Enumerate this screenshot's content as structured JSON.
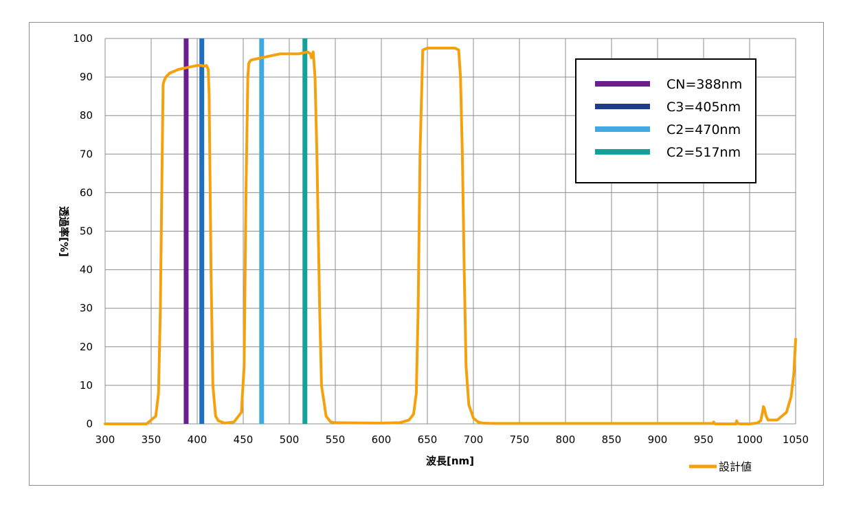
{
  "chart_data": {
    "type": "line",
    "title": "",
    "xlabel": "波長[nm]",
    "ylabel": "透過率[%]",
    "xlim": [
      300,
      1050
    ],
    "ylim": [
      0,
      100
    ],
    "x_ticks": [
      "300",
      "350",
      "400",
      "450",
      "500",
      "550",
      "600",
      "650",
      "700",
      "750",
      "800",
      "850",
      "900",
      "950",
      "1000",
      "1050"
    ],
    "y_ticks": [
      "0",
      "10",
      "20",
      "30",
      "40",
      "50",
      "60",
      "70",
      "80",
      "90",
      "100"
    ],
    "grid": true,
    "legend_top": {
      "placement": "top-right",
      "entries": [
        {
          "label": "CN=388nm",
          "color": "#6a1f8f"
        },
        {
          "label": "C3=405nm",
          "color": "#1f3c8c"
        },
        {
          "label": "C2=470nm",
          "color": "#41a8e0"
        },
        {
          "label": "C2=517nm",
          "color": "#16a09a"
        }
      ]
    },
    "legend_bottom": {
      "placement": "bottom-right",
      "entries": [
        {
          "label": "設計値",
          "color": "#f5a10d"
        }
      ]
    },
    "vlines": [
      {
        "name": "CN=388nm",
        "x": 388,
        "color": "#6a1f8f"
      },
      {
        "name": "C3=405nm",
        "x": 405,
        "color": "#1f6fbf"
      },
      {
        "name": "C2=470nm",
        "x": 470,
        "color": "#41a8e0"
      },
      {
        "name": "C2=517nm",
        "x": 517,
        "color": "#16a09a"
      }
    ],
    "series": [
      {
        "name": "設計値",
        "color": "#f5a10d",
        "x": [
          300,
          345,
          350,
          355,
          358,
          360,
          362,
          363,
          364,
          366,
          370,
          380,
          390,
          400,
          405,
          408,
          410,
          412,
          413,
          415,
          417,
          420,
          423,
          430,
          440,
          448,
          451,
          453,
          455,
          456,
          457,
          458,
          460,
          470,
          480,
          490,
          500,
          510,
          520,
          523,
          524,
          526,
          528,
          530,
          533,
          535,
          540,
          545,
          550,
          600,
          620,
          630,
          635,
          638,
          640,
          642,
          645,
          650,
          660,
          670,
          680,
          684,
          686,
          688,
          690,
          692,
          695,
          700,
          705,
          710,
          720,
          800,
          900,
          960,
          961,
          962,
          963,
          970,
          985,
          986,
          987,
          990,
          1000,
          1008,
          1012,
          1014,
          1015,
          1016,
          1018,
          1020,
          1030,
          1040,
          1045,
          1048,
          1050
        ],
        "y": [
          0,
          0,
          1,
          2,
          8,
          30,
          70,
          88,
          89,
          90,
          91,
          92,
          92.5,
          93,
          93,
          92.8,
          93,
          92,
          85,
          40,
          10,
          2,
          0.8,
          0.2,
          0.5,
          3,
          15,
          60,
          90,
          93.5,
          94,
          94.3,
          94.5,
          95,
          95.5,
          96,
          96,
          96,
          96.5,
          96,
          95,
          96.5,
          90,
          70,
          30,
          10,
          2,
          0.5,
          0.3,
          0.2,
          0.3,
          1,
          2.5,
          8,
          30,
          70,
          97,
          97.5,
          97.5,
          97.5,
          97.5,
          97,
          90,
          70,
          40,
          15,
          5,
          1.5,
          0.5,
          0.2,
          0.1,
          0.1,
          0.1,
          0.1,
          0.5,
          0.1,
          0,
          0,
          0,
          0.8,
          0.1,
          0,
          0,
          0.2,
          0.8,
          3,
          4.5,
          4,
          2,
          1,
          1,
          3,
          7,
          13,
          22
        ]
      }
    ]
  }
}
